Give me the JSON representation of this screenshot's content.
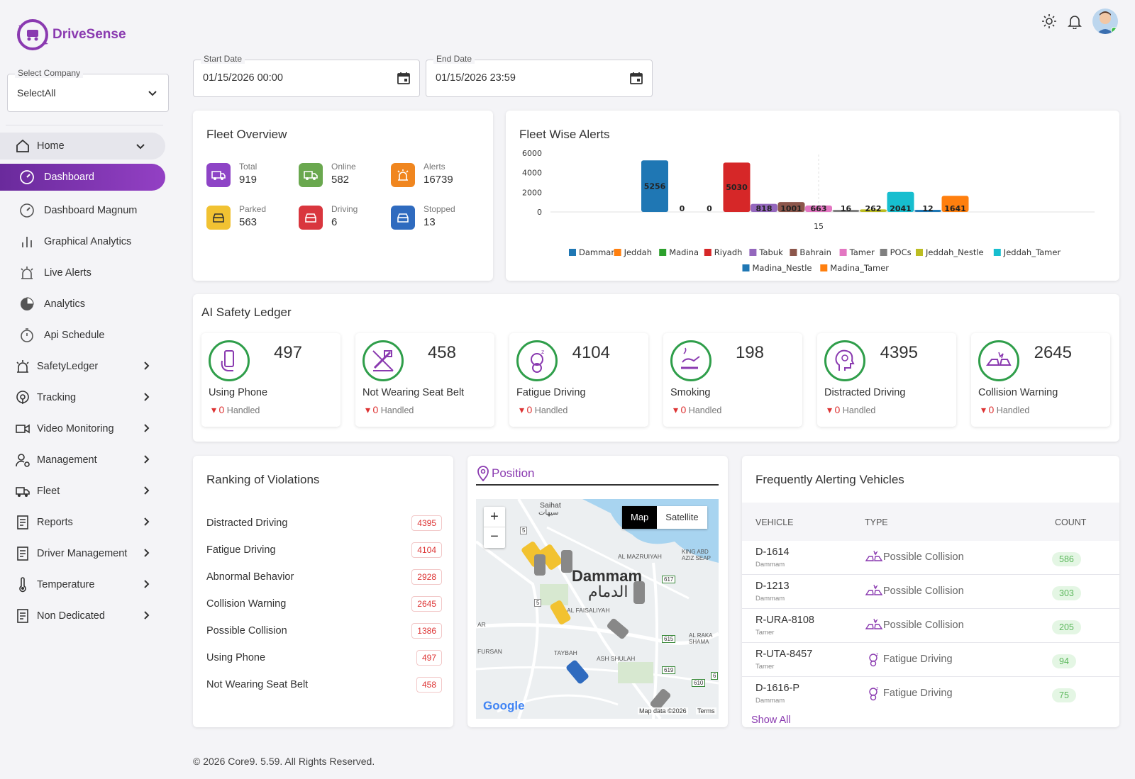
{
  "brand": {
    "name": "DriveSense"
  },
  "company": {
    "label": "Select Company",
    "value": "SelectAll"
  },
  "nav": {
    "home": "Home",
    "subs": [
      "Dashboard",
      "Dashboard Magnum",
      "Graphical Analytics",
      "Live Alerts",
      "Analytics",
      "Api Schedule"
    ],
    "items": [
      "SafetyLedger",
      "Tracking",
      "Video Monitoring",
      "Management",
      "Fleet",
      "Reports",
      "Driver Management",
      "Temperature",
      "Non Dedicated"
    ]
  },
  "dates": {
    "start": {
      "label": "Start Date",
      "value": "01/15/2026 00:00"
    },
    "end": {
      "label": "End Date",
      "value": "01/15/2026 23:59"
    }
  },
  "fleet_overview": {
    "title": "Fleet Overview",
    "items": [
      {
        "label": "Total",
        "value": "919",
        "color": "#8e44c6"
      },
      {
        "label": "Online",
        "value": "582",
        "color": "#6aa84f"
      },
      {
        "label": "Alerts",
        "value": "16739",
        "color": "#f0861f"
      },
      {
        "label": "Parked",
        "value": "563",
        "color": "#f1c232"
      },
      {
        "label": "Driving",
        "value": "6",
        "color": "#d9363e"
      },
      {
        "label": "Stopped",
        "value": "13",
        "color": "#2f6bbf"
      }
    ]
  },
  "fleet_alerts": {
    "title": "Fleet Wise Alerts",
    "x_tick": "15"
  },
  "chart_data": {
    "type": "bar",
    "title": "Fleet Wise Alerts",
    "categories": [
      "Dammam",
      "Jeddah",
      "Madina",
      "Riyadh",
      "Tabuk",
      "Bahrain",
      "Tamer",
      "POCs",
      "Jeddah_Nestle",
      "Jeddah_Tamer",
      "Madina_Nestle",
      "Madina_Tamer"
    ],
    "values": [
      5256,
      0,
      0,
      5030,
      818,
      1001,
      663,
      16,
      262,
      2041,
      12,
      1641
    ],
    "colors": [
      "#1f77b4",
      "#ff7f0e",
      "#2ca02c",
      "#d62728",
      "#9467bd",
      "#8c564b",
      "#e377c2",
      "#7f7f7f",
      "#bcbd22",
      "#17becf",
      "#1f77b4",
      "#ff7f0e"
    ],
    "yticks": [
      0,
      2000,
      4000,
      6000
    ],
    "ylim": [
      0,
      6000
    ],
    "legend_position": "bottom"
  },
  "ledger": {
    "title": "AI Safety Ledger",
    "cards": [
      {
        "value": "497",
        "name": "Using Phone",
        "handled_count": "0",
        "handled_label": "Handled"
      },
      {
        "value": "458",
        "name": "Not Wearing Seat Belt",
        "handled_count": "0",
        "handled_label": "Handled"
      },
      {
        "value": "4104",
        "name": "Fatigue Driving",
        "handled_count": "0",
        "handled_label": "Handled"
      },
      {
        "value": "198",
        "name": "Smoking",
        "handled_count": "0",
        "handled_label": "Handled"
      },
      {
        "value": "4395",
        "name": "Distracted Driving",
        "handled_count": "0",
        "handled_label": "Handled"
      },
      {
        "value": "2645",
        "name": "Collision Warning",
        "handled_count": "0",
        "handled_label": "Handled"
      }
    ]
  },
  "ranking": {
    "title": "Ranking of Violations",
    "rows": [
      {
        "name": "Distracted Driving",
        "count": "4395"
      },
      {
        "name": "Fatigue Driving",
        "count": "4104"
      },
      {
        "name": "Abnormal Behavior",
        "count": "2928"
      },
      {
        "name": "Collision Warning",
        "count": "2645"
      },
      {
        "name": "Possible Collision",
        "count": "1386"
      },
      {
        "name": "Using Phone",
        "count": "497"
      },
      {
        "name": "Not Wearing Seat Belt",
        "count": "458"
      }
    ]
  },
  "position": {
    "title": "Position",
    "map_btn": "Map",
    "sat_btn": "Satellite",
    "zoom_in": "+",
    "zoom_out": "−",
    "city_en": "Dammam",
    "city_ar": "الدمام",
    "saihat": "Saihat",
    "saihat_ar": "سيهات",
    "mazruiyah": "AL MAZRUIYAH",
    "faisaliyah": "AL FAISALIYAH",
    "king": "KING ABD AZIZ SEAP",
    "raka": "AL RAKA SHAMA",
    "taybah": "TAYBAH",
    "shulah": "ASH SHULAH",
    "fursan": "FURSAN",
    "ar": "AR",
    "google": "Google",
    "map_data": "Map data ©2026",
    "terms": "Terms",
    "road_5a": "5",
    "road_5b": "5",
    "road_617": "617",
    "road_615": "615",
    "road_619": "619",
    "road_610": "610",
    "road_6": "6"
  },
  "frequent": {
    "title": "Frequently Alerting Vehicles",
    "headers": {
      "vehicle": "VEHICLE",
      "type": "TYPE",
      "count": "COUNT"
    },
    "rows": [
      {
        "vehicle": "D-1614",
        "fleet": "Dammam",
        "type": "Possible Collision",
        "count": "586"
      },
      {
        "vehicle": "D-1213",
        "fleet": "Dammam",
        "type": "Possible Collision",
        "count": "303"
      },
      {
        "vehicle": "R-URA-8108",
        "fleet": "Tamer",
        "type": "Possible Collision",
        "count": "205"
      },
      {
        "vehicle": "R-UTA-8457",
        "fleet": "Tamer",
        "type": "Fatigue Driving",
        "count": "94"
      },
      {
        "vehicle": "D-1616-P",
        "fleet": "Dammam",
        "type": "Fatigue Driving",
        "count": "75"
      }
    ],
    "show_all": "Show All"
  },
  "footer": "© 2026 Core9. 5.59. All Rights Reserved."
}
